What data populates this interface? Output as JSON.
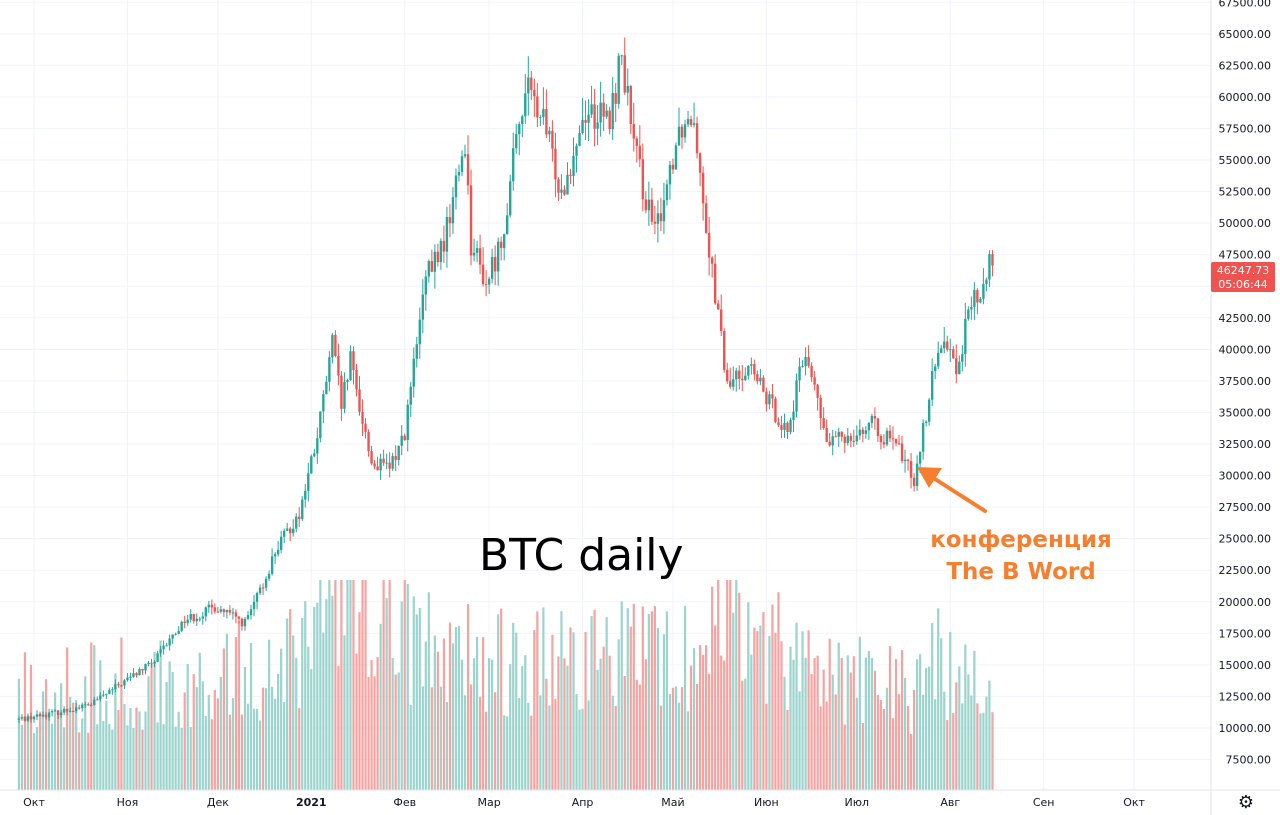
{
  "chart_data": {
    "type": "candlestick",
    "title": "BTC daily",
    "ylim": [
      5000,
      67500
    ],
    "y_ticks": [
      7500,
      10000,
      12500,
      15000,
      17500,
      20000,
      22500,
      25000,
      27500,
      30000,
      32500,
      35000,
      37500,
      40000,
      42500,
      45000,
      47500,
      50000,
      52500,
      55000,
      57500,
      60000,
      62500,
      65000,
      67500
    ],
    "y_tick_labels": [
      "7500.00",
      "10000.00",
      "12500.00",
      "15000.00",
      "17500.00",
      "20000.00",
      "22500.00",
      "25000.00",
      "27500.00",
      "30000.00",
      "32500.00",
      "35000.00",
      "37500.00",
      "40000.00",
      "42500.00",
      "45000.00",
      "47500.00",
      "50000.00",
      "52500.00",
      "55000.00",
      "57500.00",
      "60000.00",
      "62500.00",
      "65000.00",
      "67500.00"
    ],
    "x_ticks": [
      {
        "label": "Окт",
        "bold": false
      },
      {
        "label": "Ноя",
        "bold": false
      },
      {
        "label": "Дек",
        "bold": false
      },
      {
        "label": "2021",
        "bold": true
      },
      {
        "label": "Фев",
        "bold": false
      },
      {
        "label": "Мар",
        "bold": false
      },
      {
        "label": "Апр",
        "bold": false
      },
      {
        "label": "Май",
        "bold": false
      },
      {
        "label": "Июн",
        "bold": false
      },
      {
        "label": "Июл",
        "bold": false
      },
      {
        "label": "Авг",
        "bold": false
      },
      {
        "label": "Сен",
        "bold": false
      },
      {
        "label": "Окт",
        "bold": false
      }
    ],
    "price_path": [
      [
        "2020-09-26",
        10700
      ],
      [
        "2020-10-10",
        11300
      ],
      [
        "2020-10-20",
        11900
      ],
      [
        "2020-10-31",
        13700
      ],
      [
        "2020-11-10",
        15300
      ],
      [
        "2020-11-20",
        18600
      ],
      [
        "2020-11-25",
        19000
      ],
      [
        "2020-11-30",
        19600
      ],
      [
        "2020-12-10",
        18300
      ],
      [
        "2020-12-16",
        21300
      ],
      [
        "2020-12-20",
        24000
      ],
      [
        "2020-12-28",
        27000
      ],
      [
        "2021-01-03",
        33000
      ],
      [
        "2021-01-08",
        40500
      ],
      [
        "2021-01-11",
        35500
      ],
      [
        "2021-01-14",
        39000
      ],
      [
        "2021-01-21",
        31000
      ],
      [
        "2021-01-27",
        30500
      ],
      [
        "2021-02-01",
        33500
      ],
      [
        "2021-02-08",
        45500
      ],
      [
        "2021-02-14",
        48500
      ],
      [
        "2021-02-21",
        56500
      ],
      [
        "2021-02-23",
        48500
      ],
      [
        "2021-02-28",
        45200
      ],
      [
        "2021-03-05",
        48500
      ],
      [
        "2021-03-13",
        61000
      ],
      [
        "2021-03-19",
        58000
      ],
      [
        "2021-03-25",
        52500
      ],
      [
        "2021-04-02",
        59000
      ],
      [
        "2021-04-10",
        58000
      ],
      [
        "2021-04-14",
        63500
      ],
      [
        "2021-04-18",
        56000
      ],
      [
        "2021-04-25",
        49000
      ],
      [
        "2021-05-03",
        57500
      ],
      [
        "2021-05-08",
        58800
      ],
      [
        "2021-05-12",
        50000
      ],
      [
        "2021-05-19",
        37000
      ],
      [
        "2021-05-26",
        38800
      ],
      [
        "2021-05-31",
        36500
      ],
      [
        "2021-06-08",
        33500
      ],
      [
        "2021-06-14",
        40000
      ],
      [
        "2021-06-21",
        32500
      ],
      [
        "2021-06-26",
        33000
      ],
      [
        "2021-07-06",
        34000
      ],
      [
        "2021-07-15",
        32000
      ],
      [
        "2021-07-20",
        29800
      ],
      [
        "2021-07-26",
        37500
      ],
      [
        "2021-07-30",
        41500
      ],
      [
        "2021-08-03",
        38200
      ],
      [
        "2021-08-08",
        43800
      ],
      [
        "2021-08-12",
        44500
      ],
      [
        "2021-08-14",
        47200
      ],
      [
        "2021-08-15",
        46248
      ]
    ],
    "volume_path": [
      [
        "2020-09-26",
        7000
      ],
      [
        "2020-12-16",
        9000
      ],
      [
        "2021-01-03",
        11000
      ],
      [
        "2021-01-11",
        15000
      ],
      [
        "2021-02-08",
        10500
      ],
      [
        "2021-03-01",
        9500
      ],
      [
        "2021-04-18",
        9800
      ],
      [
        "2021-05-12",
        9500
      ],
      [
        "2021-05-19",
        16000
      ],
      [
        "2021-06-01",
        10500
      ],
      [
        "2021-07-01",
        8200
      ],
      [
        "2021-07-20",
        7200
      ],
      [
        "2021-07-26",
        10000
      ],
      [
        "2021-08-15",
        7000
      ]
    ],
    "last_price": "46247.73",
    "countdown": "05:06:44",
    "colors": {
      "up": "#26a69a",
      "down": "#ef5350",
      "vol_up": "#9bd3cd",
      "vol_down": "#f5a3a0",
      "grid": "#f0f3fa",
      "badge": "#ef5350",
      "annotation": "#f57f2f"
    }
  },
  "annotation": {
    "line1": "конференция",
    "line2": "The B Word",
    "date": "2021-07-21",
    "price": 30500
  },
  "settings_icon": "gear-icon"
}
